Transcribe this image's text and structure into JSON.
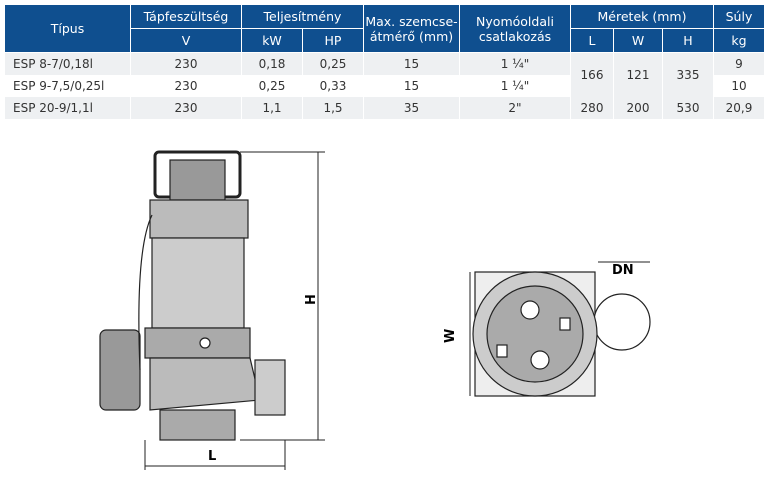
{
  "table": {
    "headers": {
      "type": "Típus",
      "voltage": "Tápfeszültség",
      "power": "Teljesítmény",
      "grain": "Max. szemcse-átmérő    (mm)",
      "outlet": "Nyomóoldali csatlakozás",
      "dims": "Méretek (mm)",
      "weight": "Súly"
    },
    "units": {
      "voltage": "V",
      "kw": "kW",
      "hp": "HP",
      "l": "L",
      "w": "W",
      "h": "H",
      "kg": "kg"
    },
    "rows": [
      {
        "type": "ESP 8-7/0,18l",
        "v": "230",
        "kw": "0,18",
        "hp": "0,25",
        "grain": "15",
        "outlet": "1 ¼\"",
        "kg": "9"
      },
      {
        "type": "ESP 9-7,5/0,25l",
        "v": "230",
        "kw": "0,25",
        "hp": "0,33",
        "grain": "15",
        "outlet": "1 ¼\"",
        "kg": "10"
      },
      {
        "type": "ESP 20-9/1,1l",
        "v": "230",
        "kw": "1,1",
        "hp": "1,5",
        "grain": "35",
        "outlet": "2\"",
        "l": "280",
        "w": "200",
        "h": "530",
        "kg": "20,9"
      }
    ],
    "merged_dims": {
      "l": "166",
      "w": "121",
      "h": "335"
    }
  },
  "drawing": {
    "h_label": "H",
    "l_label": "L",
    "w_label": "W",
    "dn_label": "DN"
  },
  "colors": {
    "header": "#0f4f8f",
    "row_alt": "#eef0f2"
  }
}
